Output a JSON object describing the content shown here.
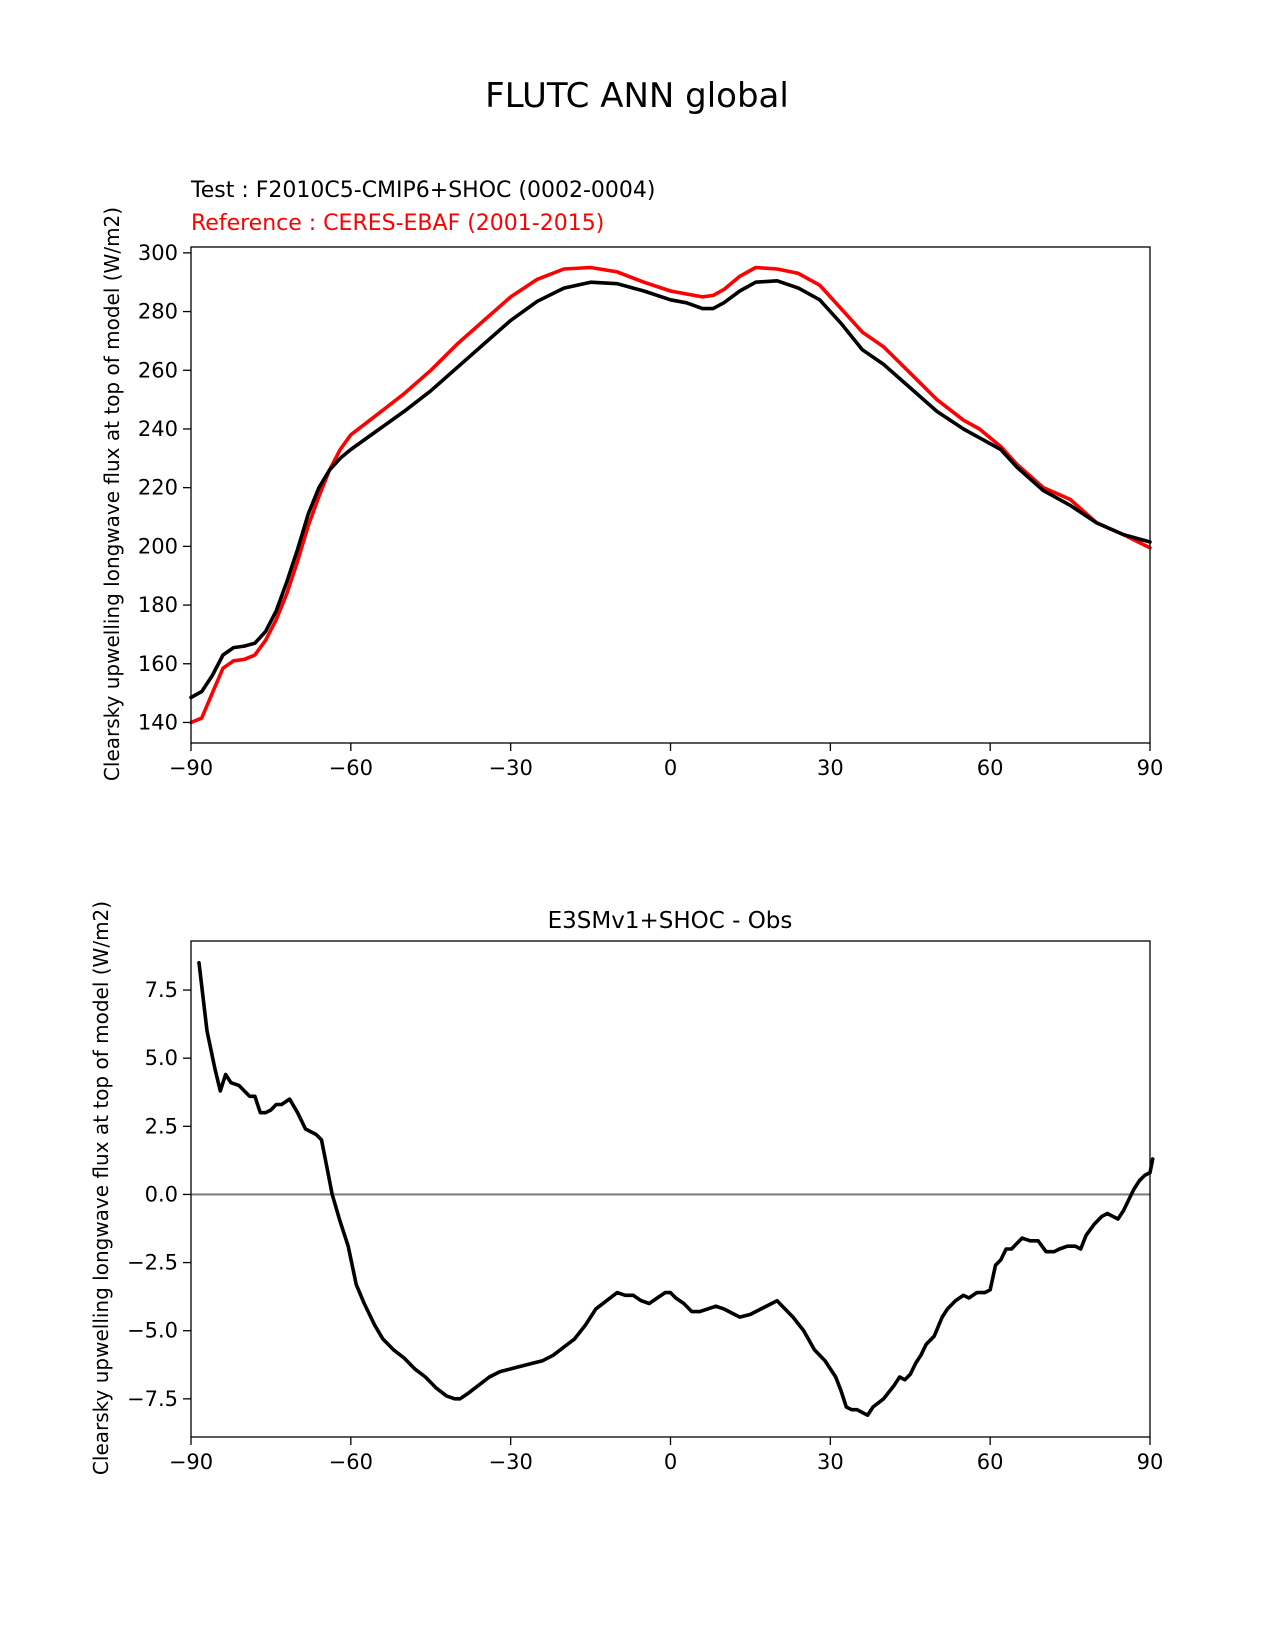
{
  "figure": {
    "title": "FLUTC ANN global"
  },
  "colors": {
    "test": "#000000",
    "reference": "#ff0000",
    "zero_line": "#808080"
  },
  "chart_data": [
    {
      "type": "line",
      "test_label": "Test : F2010C5-CMIP6+SHOC (0002-0004)",
      "reference_label": "Reference : CERES-EBAF (2001-2015)",
      "xlabel": "",
      "ylabel": "Clearsky upwelling longwave flux at top of model (W/m2)",
      "xlim": [
        -90,
        90
      ],
      "ylim": [
        133,
        302
      ],
      "xticks": [
        -90,
        -60,
        -30,
        0,
        30,
        60,
        90
      ],
      "xtick_labels": [
        "−90",
        "−60",
        "−30",
        "0",
        "30",
        "60",
        "90"
      ],
      "yticks": [
        140,
        160,
        180,
        200,
        220,
        240,
        260,
        280,
        300
      ],
      "ytick_labels": [
        "140",
        "160",
        "180",
        "200",
        "220",
        "240",
        "260",
        "280",
        "300"
      ],
      "series": [
        {
          "role": "test",
          "color": "#000000",
          "points": [
            [
              -90,
              148.5
            ],
            [
              -88,
              150.5
            ],
            [
              -86,
              156
            ],
            [
              -84,
              163
            ],
            [
              -82,
              165.5
            ],
            [
              -80,
              166
            ],
            [
              -78,
              167
            ],
            [
              -76,
              171
            ],
            [
              -74,
              178
            ],
            [
              -72,
              188
            ],
            [
              -70,
              199
            ],
            [
              -68,
              211
            ],
            [
              -66,
              220
            ],
            [
              -64,
              226
            ],
            [
              -62,
              230
            ],
            [
              -60,
              233
            ],
            [
              -55,
              239.5
            ],
            [
              -50,
              246
            ],
            [
              -45,
              253
            ],
            [
              -40,
              261
            ],
            [
              -35,
              269
            ],
            [
              -30,
              277
            ],
            [
              -25,
              283.5
            ],
            [
              -20,
              288
            ],
            [
              -15,
              290
            ],
            [
              -10,
              289.5
            ],
            [
              -5,
              287
            ],
            [
              0,
              284
            ],
            [
              3,
              283
            ],
            [
              6,
              281
            ],
            [
              8,
              281
            ],
            [
              10,
              283
            ],
            [
              13,
              287
            ],
            [
              16,
              290
            ],
            [
              20,
              290.5
            ],
            [
              24,
              288
            ],
            [
              28,
              284
            ],
            [
              32,
              276
            ],
            [
              36,
              267
            ],
            [
              40,
              262
            ],
            [
              45,
              254
            ],
            [
              50,
              246
            ],
            [
              55,
              240
            ],
            [
              58,
              237
            ],
            [
              62,
              233
            ],
            [
              65,
              227
            ],
            [
              70,
              219
            ],
            [
              75,
              214
            ],
            [
              80,
              208
            ],
            [
              85,
              204
            ],
            [
              90,
              201.5
            ]
          ]
        },
        {
          "role": "reference",
          "color": "#ff0000",
          "points": [
            [
              -90,
              140
            ],
            [
              -88,
              141.5
            ],
            [
              -86,
              150
            ],
            [
              -84,
              158.5
            ],
            [
              -82,
              161
            ],
            [
              -80,
              161.5
            ],
            [
              -78,
              163
            ],
            [
              -76,
              168
            ],
            [
              -74,
              175
            ],
            [
              -72,
              184
            ],
            [
              -70,
              195
            ],
            [
              -68,
              207
            ],
            [
              -66,
              217
            ],
            [
              -64,
              226
            ],
            [
              -62,
              233
            ],
            [
              -60,
              238
            ],
            [
              -55,
              245
            ],
            [
              -50,
              252
            ],
            [
              -45,
              260
            ],
            [
              -40,
              269
            ],
            [
              -35,
              277
            ],
            [
              -30,
              285
            ],
            [
              -25,
              291
            ],
            [
              -20,
              294.5
            ],
            [
              -15,
              295
            ],
            [
              -10,
              293.5
            ],
            [
              -5,
              290
            ],
            [
              0,
              287
            ],
            [
              3,
              286
            ],
            [
              6,
              285
            ],
            [
              8,
              285.5
            ],
            [
              10,
              287.5
            ],
            [
              13,
              292
            ],
            [
              16,
              295
            ],
            [
              20,
              294.5
            ],
            [
              24,
              293
            ],
            [
              28,
              289
            ],
            [
              32,
              281
            ],
            [
              36,
              273
            ],
            [
              40,
              268
            ],
            [
              45,
              259
            ],
            [
              50,
              250
            ],
            [
              55,
              243
            ],
            [
              58,
              240
            ],
            [
              62,
              234
            ],
            [
              65,
              228
            ],
            [
              70,
              220
            ],
            [
              75,
              216
            ],
            [
              80,
              208
            ],
            [
              85,
              204
            ],
            [
              90,
              199.5
            ]
          ]
        }
      ]
    },
    {
      "type": "line",
      "title": "E3SMv1+SHOC - Obs",
      "xlabel": "",
      "ylabel": "Clearsky upwelling longwave flux at top of model (W/m2)",
      "xlim": [
        -90,
        90
      ],
      "ylim": [
        -8.9,
        9.3
      ],
      "xticks": [
        -90,
        -60,
        -30,
        0,
        30,
        60,
        90
      ],
      "xtick_labels": [
        "−90",
        "−60",
        "−30",
        "0",
        "30",
        "60",
        "90"
      ],
      "yticks": [
        -7.5,
        -5.0,
        -2.5,
        0.0,
        2.5,
        5.0,
        7.5
      ],
      "ytick_labels": [
        "−7.5",
        "−5.0",
        "−2.5",
        "0.0",
        "2.5",
        "5.0",
        "7.5"
      ],
      "reference_line": 0,
      "series": [
        {
          "role": "difference",
          "color": "#000000",
          "points": [
            [
              -88.5,
              8.5
            ],
            [
              -87,
              6
            ],
            [
              -85.5,
              4.6
            ],
            [
              -84.5,
              3.8
            ],
            [
              -83.5,
              4.4
            ],
            [
              -82.5,
              4.1
            ],
            [
              -81,
              4
            ],
            [
              -80,
              3.8
            ],
            [
              -79,
              3.6
            ],
            [
              -78,
              3.6
            ],
            [
              -77,
              3
            ],
            [
              -76,
              3
            ],
            [
              -75,
              3.1
            ],
            [
              -74,
              3.3
            ],
            [
              -73,
              3.3
            ],
            [
              -71.5,
              3.5
            ],
            [
              -70,
              3
            ],
            [
              -68.5,
              2.4
            ],
            [
              -66.5,
              2.2
            ],
            [
              -65.5,
              2
            ],
            [
              -64.5,
              1
            ],
            [
              -63.5,
              0
            ],
            [
              -62,
              -1
            ],
            [
              -60.5,
              -1.9
            ],
            [
              -59,
              -3.3
            ],
            [
              -57.5,
              -4
            ],
            [
              -55.5,
              -4.8
            ],
            [
              -54,
              -5.3
            ],
            [
              -52,
              -5.7
            ],
            [
              -50,
              -6
            ],
            [
              -48,
              -6.4
            ],
            [
              -46,
              -6.7
            ],
            [
              -44,
              -7.1
            ],
            [
              -42,
              -7.4
            ],
            [
              -40.5,
              -7.5
            ],
            [
              -39.5,
              -7.5
            ],
            [
              -38,
              -7.3
            ],
            [
              -36,
              -7
            ],
            [
              -34,
              -6.7
            ],
            [
              -32,
              -6.5
            ],
            [
              -30,
              -6.4
            ],
            [
              -28,
              -6.3
            ],
            [
              -26,
              -6.2
            ],
            [
              -24,
              -6.1
            ],
            [
              -22,
              -5.9
            ],
            [
              -20,
              -5.6
            ],
            [
              -18,
              -5.3
            ],
            [
              -16,
              -4.8
            ],
            [
              -14,
              -4.2
            ],
            [
              -12,
              -3.9
            ],
            [
              -10,
              -3.6
            ],
            [
              -8.5,
              -3.7
            ],
            [
              -7,
              -3.7
            ],
            [
              -5.5,
              -3.9
            ],
            [
              -4,
              -4
            ],
            [
              -2.5,
              -3.8
            ],
            [
              -1,
              -3.6
            ],
            [
              0,
              -3.6
            ],
            [
              1,
              -3.8
            ],
            [
              2.5,
              -4
            ],
            [
              4,
              -4.3
            ],
            [
              5.5,
              -4.3
            ],
            [
              7,
              -4.2
            ],
            [
              8.5,
              -4.1
            ],
            [
              10,
              -4.2
            ],
            [
              12,
              -4.4
            ],
            [
              13,
              -4.5
            ],
            [
              15,
              -4.4
            ],
            [
              17,
              -4.2
            ],
            [
              19,
              -4
            ],
            [
              20,
              -3.9
            ],
            [
              21,
              -4.1
            ],
            [
              23,
              -4.5
            ],
            [
              25,
              -5
            ],
            [
              27,
              -5.7
            ],
            [
              28,
              -5.9
            ],
            [
              29,
              -6.1
            ],
            [
              31,
              -6.7
            ],
            [
              32,
              -7.2
            ],
            [
              33,
              -7.8
            ],
            [
              34,
              -7.9
            ],
            [
              35,
              -7.9
            ],
            [
              36,
              -8
            ],
            [
              37,
              -8.1
            ],
            [
              38,
              -7.8
            ],
            [
              40,
              -7.5
            ],
            [
              42,
              -7
            ],
            [
              43,
              -6.7
            ],
            [
              44,
              -6.8
            ],
            [
              45,
              -6.6
            ],
            [
              46,
              -6.2
            ],
            [
              47,
              -5.9
            ],
            [
              48,
              -5.5
            ],
            [
              49.5,
              -5.2
            ],
            [
              51,
              -4.5
            ],
            [
              52,
              -4.2
            ],
            [
              53.5,
              -3.9
            ],
            [
              55,
              -3.7
            ],
            [
              56,
              -3.8
            ],
            [
              57.5,
              -3.6
            ],
            [
              59,
              -3.6
            ],
            [
              60,
              -3.5
            ],
            [
              61,
              -2.6
            ],
            [
              62,
              -2.4
            ],
            [
              63,
              -2
            ],
            [
              64,
              -2
            ],
            [
              65,
              -1.8
            ],
            [
              66,
              -1.6
            ],
            [
              67.5,
              -1.7
            ],
            [
              69,
              -1.7
            ],
            [
              70.5,
              -2.1
            ],
            [
              72,
              -2.1
            ],
            [
              73,
              -2
            ],
            [
              74.5,
              -1.9
            ],
            [
              76,
              -1.9
            ],
            [
              77,
              -2
            ],
            [
              78,
              -1.5
            ],
            [
              79.5,
              -1.1
            ],
            [
              81,
              -0.8
            ],
            [
              82,
              -0.7
            ],
            [
              83,
              -0.8
            ],
            [
              84,
              -0.9
            ],
            [
              85,
              -0.6
            ],
            [
              86,
              -0.2
            ],
            [
              87,
              0.2
            ],
            [
              88,
              0.5
            ],
            [
              89,
              0.7
            ],
            [
              90,
              0.8
            ],
            [
              90.5,
              1.3
            ]
          ]
        }
      ]
    }
  ]
}
